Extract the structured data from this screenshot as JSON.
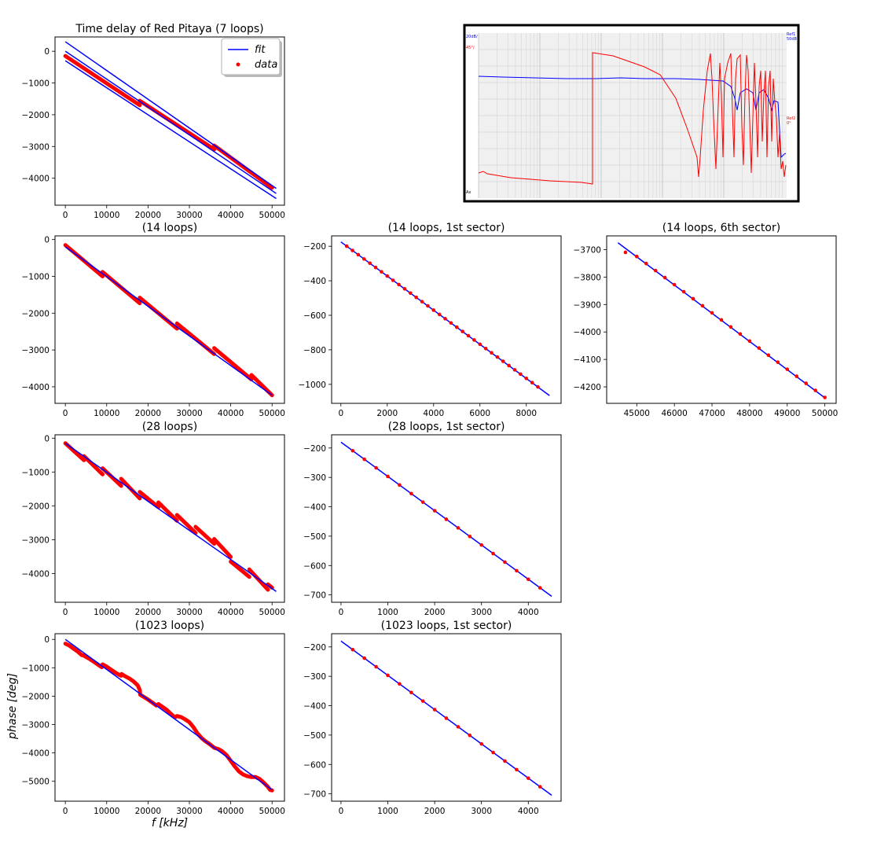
{
  "figure": {
    "ylabel": "phase [deg]",
    "xlabel": "f [kHz]",
    "legend": {
      "fit": "fit",
      "data": "data"
    }
  },
  "inset": {
    "labels": {
      "ch1_scale": "20dB/",
      "ch2_scale": "45°/",
      "ref1": "Ref1",
      "ref1_value": "50dB",
      "ref2": "Ref2",
      "ref2_value": "0°",
      "corner": "Ax"
    }
  },
  "colors": {
    "fit": "#0000ff",
    "data": "#ff0000",
    "axes": "#000000"
  },
  "chart_data": [
    {
      "id": "p1",
      "type": "line",
      "title": "Time delay of Red Pitaya (7 loops)",
      "xlim": [
        -2500,
        53000
      ],
      "ylim": [
        -4850,
        450
      ],
      "xticks": [
        0,
        10000,
        20000,
        30000,
        40000,
        50000
      ],
      "yticks": [
        0,
        -1000,
        -2000,
        -3000,
        -4000
      ],
      "legend": "top-right",
      "fit_lines": [
        [
          [
            0,
            300
          ],
          [
            51000,
            -4320
          ]
        ],
        [
          [
            0,
            0
          ],
          [
            51000,
            -4480
          ]
        ],
        [
          [
            0,
            -300
          ],
          [
            51000,
            -4640
          ]
        ]
      ],
      "data_segments": [
        [
          [
            0,
            -150
          ],
          [
            18000,
            -1700
          ]
        ],
        [
          [
            18000,
            -1560
          ],
          [
            36000,
            -3090
          ]
        ],
        [
          [
            36000,
            -2970
          ],
          [
            50000,
            -4300
          ]
        ]
      ],
      "series": [
        {
          "name": "fit"
        },
        {
          "name": "data"
        }
      ]
    },
    {
      "id": "p2",
      "type": "line",
      "title": "(14 loops)",
      "xlim": [
        -2500,
        53000
      ],
      "ylim": [
        -4450,
        100
      ],
      "xticks": [
        0,
        10000,
        20000,
        30000,
        40000,
        50000
      ],
      "yticks": [
        0,
        -1000,
        -2000,
        -3000,
        -4000
      ],
      "fit_lines": [
        [
          [
            0,
            -200
          ],
          [
            50000,
            -4230
          ]
        ]
      ],
      "data_segments": [
        [
          [
            0,
            -150
          ],
          [
            9000,
            -1000
          ]
        ],
        [
          [
            9000,
            -880
          ],
          [
            18000,
            -1730
          ]
        ],
        [
          [
            18000,
            -1580
          ],
          [
            27000,
            -2420
          ]
        ],
        [
          [
            27000,
            -2280
          ],
          [
            36000,
            -3110
          ]
        ],
        [
          [
            36000,
            -2950
          ],
          [
            45000,
            -3800
          ]
        ],
        [
          [
            45000,
            -3680
          ],
          [
            50000,
            -4230
          ]
        ]
      ]
    },
    {
      "id": "p3",
      "type": "line",
      "title": "(14 loops, 1st sector)",
      "xlim": [
        -400,
        9500
      ],
      "ylim": [
        -1110,
        -140
      ],
      "xticks": [
        0,
        2000,
        4000,
        6000,
        8000
      ],
      "yticks": [
        -200,
        -400,
        -600,
        -800,
        -1000
      ],
      "fit_lines": [
        [
          [
            0,
            -175
          ],
          [
            9000,
            -1065
          ]
        ]
      ],
      "points": {
        "x_start": 250,
        "x_step": 250,
        "count": 34,
        "slope": -0.0988,
        "intercept": -175
      }
    },
    {
      "id": "p4",
      "type": "line",
      "title": "(14 loops, 6th sector)",
      "xlim": [
        44200,
        50300
      ],
      "ylim": [
        -4260,
        -3650
      ],
      "xticks": [
        45000,
        46000,
        47000,
        48000,
        49000,
        50000
      ],
      "yticks": [
        -3700,
        -3800,
        -3900,
        -4000,
        -4100,
        -4200
      ],
      "fit_lines": [
        [
          [
            44500,
            -3675
          ],
          [
            50000,
            -4240
          ]
        ]
      ],
      "points": {
        "x_start": 45000,
        "x_step": 250,
        "count": 21,
        "slope": -0.1027,
        "intercept": 896.5,
        "extra": [
          [
            44700,
            -3710
          ]
        ]
      }
    },
    {
      "id": "p5",
      "type": "line",
      "title": "(28 loops)",
      "xlim": [
        -2500,
        53000
      ],
      "ylim": [
        -4850,
        100
      ],
      "xticks": [
        0,
        10000,
        20000,
        30000,
        40000,
        50000
      ],
      "yticks": [
        0,
        -1000,
        -2000,
        -3000,
        -4000
      ],
      "fit_lines": [
        [
          [
            0,
            -150
          ],
          [
            51000,
            -4530
          ]
        ]
      ],
      "data_segments": [
        [
          [
            0,
            -150
          ],
          [
            4500,
            -650
          ]
        ],
        [
          [
            4500,
            -530
          ],
          [
            9000,
            -1070
          ]
        ],
        [
          [
            9000,
            -890
          ],
          [
            13500,
            -1410
          ]
        ],
        [
          [
            13500,
            -1200
          ],
          [
            18000,
            -1780
          ]
        ],
        [
          [
            18000,
            -1590
          ],
          [
            22500,
            -2040
          ]
        ],
        [
          [
            22500,
            -1900
          ],
          [
            27000,
            -2440
          ]
        ],
        [
          [
            27000,
            -2270
          ],
          [
            31500,
            -2800
          ]
        ],
        [
          [
            31500,
            -2620
          ],
          [
            36000,
            -3120
          ]
        ],
        [
          [
            36000,
            -2980
          ],
          [
            40000,
            -3510
          ]
        ],
        [
          [
            40000,
            -3650
          ],
          [
            44500,
            -4100
          ]
        ],
        [
          [
            44500,
            -3880
          ],
          [
            49000,
            -4480
          ]
        ],
        [
          [
            49000,
            -4320
          ],
          [
            50000,
            -4420
          ]
        ]
      ]
    },
    {
      "id": "p6",
      "type": "line",
      "title": "(28 loops, 1st sector)",
      "xlim": [
        -200,
        4700
      ],
      "ylim": [
        -725,
        -155
      ],
      "xticks": [
        0,
        1000,
        2000,
        3000,
        4000
      ],
      "yticks": [
        -200,
        -300,
        -400,
        -500,
        -600,
        -700
      ],
      "fit_lines": [
        [
          [
            0,
            -180
          ],
          [
            4500,
            -705
          ]
        ]
      ],
      "points": {
        "x_start": 250,
        "x_step": 250,
        "count": 17,
        "slope": -0.1167,
        "intercept": -180
      }
    },
    {
      "id": "p7",
      "type": "line",
      "title": "(1023 loops)",
      "xlim": [
        -2500,
        53000
      ],
      "ylim": [
        -5700,
        200
      ],
      "xticks": [
        0,
        10000,
        20000,
        30000,
        40000,
        50000
      ],
      "yticks": [
        0,
        -1000,
        -2000,
        -3000,
        -4000,
        -5000
      ],
      "xlabel": "f [kHz]",
      "ylabel": "phase [deg]",
      "fit_lines": [
        [
          [
            0,
            0
          ],
          [
            50000,
            -5300
          ]
        ]
      ],
      "data_curve": [
        [
          0,
          -150
        ],
        [
          1000,
          -220
        ],
        [
          2000,
          -330
        ],
        [
          3000,
          -430
        ],
        [
          4000,
          -560
        ],
        [
          4300,
          -560
        ],
        [
          5000,
          -620
        ],
        [
          6000,
          -700
        ],
        [
          7000,
          -800
        ],
        [
          8000,
          -900
        ],
        [
          8800,
          -980
        ],
        [
          9000,
          -880
        ],
        [
          10000,
          -960
        ],
        [
          11000,
          -1060
        ],
        [
          12000,
          -1160
        ],
        [
          13000,
          -1250
        ],
        [
          13500,
          -1280
        ],
        [
          13600,
          -1220
        ],
        [
          14500,
          -1300
        ],
        [
          15500,
          -1380
        ],
        [
          16500,
          -1480
        ],
        [
          17500,
          -1620
        ],
        [
          18000,
          -1780
        ],
        [
          18100,
          -1950
        ],
        [
          19000,
          -2030
        ],
        [
          20000,
          -2120
        ],
        [
          21000,
          -2220
        ],
        [
          22000,
          -2330
        ],
        [
          22500,
          -2280
        ],
        [
          23500,
          -2380
        ],
        [
          24500,
          -2480
        ],
        [
          25500,
          -2620
        ],
        [
          26500,
          -2750
        ],
        [
          27000,
          -2700
        ],
        [
          28000,
          -2740
        ],
        [
          29000,
          -2820
        ],
        [
          30000,
          -2920
        ],
        [
          31000,
          -3100
        ],
        [
          32000,
          -3320
        ],
        [
          33000,
          -3480
        ],
        [
          34000,
          -3600
        ],
        [
          35000,
          -3700
        ],
        [
          36000,
          -3820
        ],
        [
          37000,
          -3860
        ],
        [
          38000,
          -3950
        ],
        [
          39000,
          -4080
        ],
        [
          40000,
          -4280
        ],
        [
          41000,
          -4480
        ],
        [
          42000,
          -4650
        ],
        [
          43000,
          -4760
        ],
        [
          44000,
          -4820
        ],
        [
          45000,
          -4850
        ],
        [
          46000,
          -4850
        ],
        [
          47000,
          -4920
        ],
        [
          48000,
          -5050
        ],
        [
          49000,
          -5200
        ],
        [
          49500,
          -5300
        ],
        [
          50000,
          -5320
        ]
      ]
    },
    {
      "id": "p8",
      "type": "line",
      "title": "(1023 loops, 1st sector)",
      "xlim": [
        -200,
        4700
      ],
      "ylim": [
        -725,
        -155
      ],
      "xticks": [
        0,
        1000,
        2000,
        3000,
        4000
      ],
      "yticks": [
        -200,
        -300,
        -400,
        -500,
        -600,
        -700
      ],
      "fit_lines": [
        [
          [
            0,
            -180
          ],
          [
            4500,
            -705
          ]
        ]
      ],
      "points": {
        "x_start": 250,
        "x_step": 250,
        "count": 17,
        "slope": -0.1167,
        "intercept": -180
      }
    }
  ]
}
